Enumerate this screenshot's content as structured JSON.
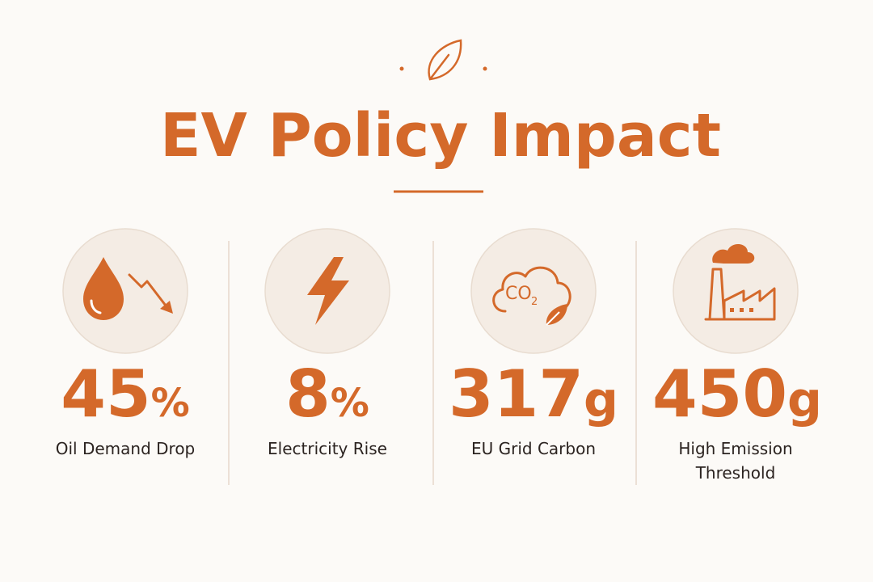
{
  "title": "EV Policy Impact",
  "stats": [
    {
      "number": "45",
      "unit": "%",
      "label": [
        "Oil Demand Drop"
      ]
    },
    {
      "number": "8",
      "unit": "%",
      "label": [
        "Electricity Rise"
      ]
    },
    {
      "number": "317",
      "unit": "g",
      "label": [
        "EU Grid Carbon"
      ]
    },
    {
      "number": "450",
      "unit": "g",
      "label": [
        "High Emission",
        "Threshold"
      ]
    }
  ],
  "icons": {
    "co2": "CO",
    "co2_sub": "2"
  }
}
